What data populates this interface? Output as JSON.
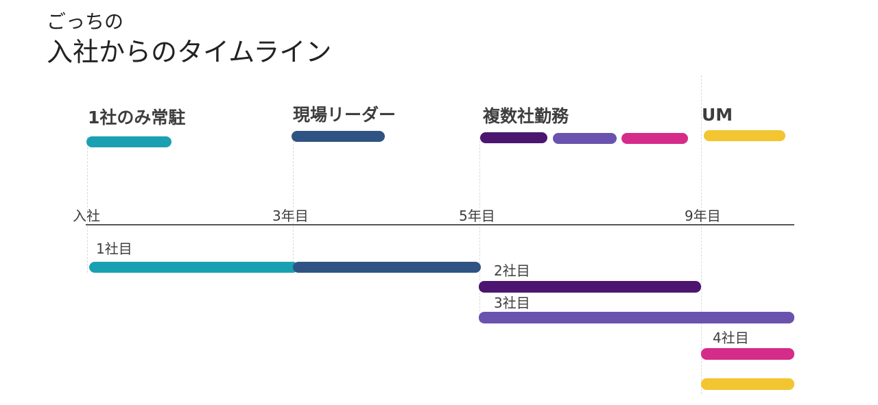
{
  "title": {
    "sub": "ごっちの",
    "main": "入社からのタイムライン"
  },
  "phases": [
    {
      "label": "1社のみ常駐"
    },
    {
      "label": "現場リーダー"
    },
    {
      "label": "複数社勤務"
    },
    {
      "label": "UM"
    }
  ],
  "axis": {
    "ticks": [
      "入社",
      "3年目",
      "5年目",
      "9年目"
    ]
  },
  "companies": [
    {
      "label": "1社目"
    },
    {
      "label": "2社目"
    },
    {
      "label": "3社目"
    },
    {
      "label": "4社目"
    }
  ],
  "colors": {
    "teal": "#1aa1b1",
    "navy": "#2f5483",
    "dark_purple": "#4c1670",
    "purple": "#6a53ae",
    "magenta": "#d52c8a",
    "yellow": "#f2c531",
    "axis": "#555555",
    "guide": "#d9d9d9",
    "text": "#3d3d3d"
  }
}
